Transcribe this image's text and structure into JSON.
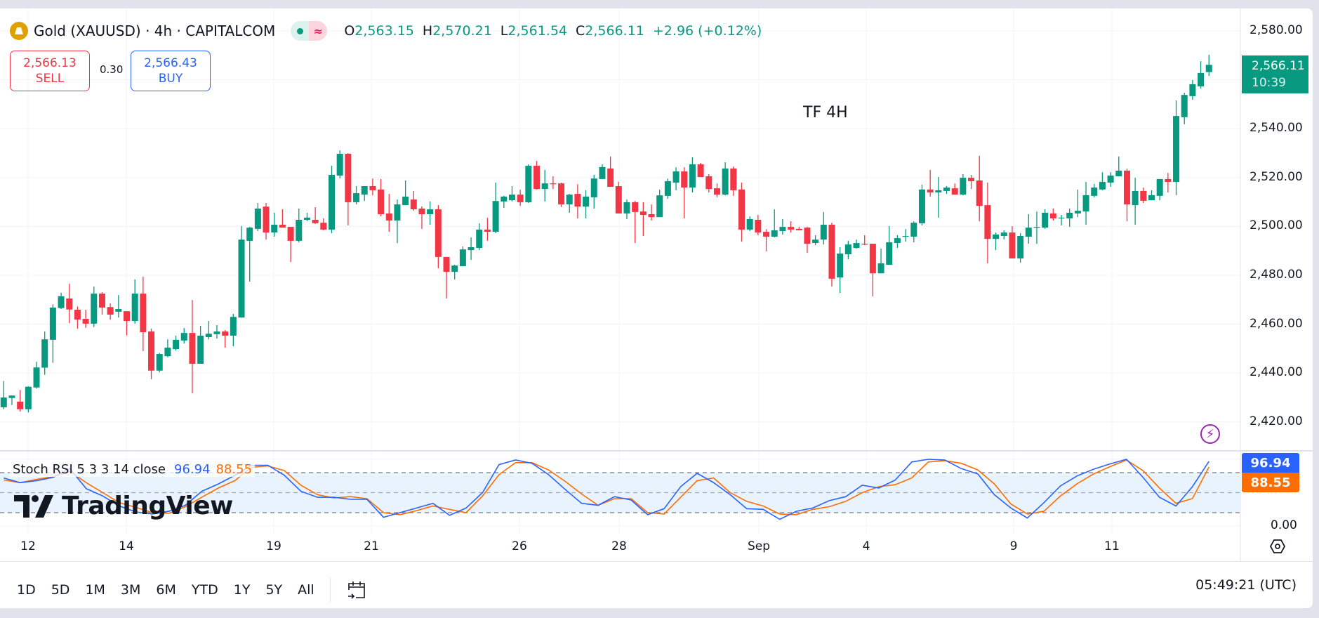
{
  "header": {
    "title": "Gold (XAUUSD) · 4h · CAPITALCOM",
    "open_label": "O",
    "open": "2,563.15",
    "high_label": "H",
    "high": "2,570.21",
    "low_label": "L",
    "low": "2,561.54",
    "close_label": "C",
    "close": "2,566.11",
    "change": "+2.96 (+0.12%)",
    "status_icon": "≈"
  },
  "trade": {
    "sell_price": "2,566.13",
    "sell_label": "SELL",
    "spread": "0.30",
    "buy_price": "2,566.43",
    "buy_label": "BUY"
  },
  "annotation": "TF 4H",
  "price_axis": [
    "2,580.00",
    "2,540.00",
    "2,520.00",
    "2,500.00",
    "2,480.00",
    "2,460.00",
    "2,440.00",
    "2,420.00"
  ],
  "last_price": {
    "value": "2,566.11",
    "countdown": "10:39"
  },
  "stoch": {
    "legend": "Stoch RSI 5 3 3 14 close",
    "k_value": "96.94",
    "d_value": "88.55",
    "zero_label": "0.00"
  },
  "time_axis": [
    "12",
    "14",
    "19",
    "21",
    "26",
    "28",
    "Sep",
    "4",
    "9",
    "11"
  ],
  "toolbar": {
    "ranges": [
      "1D",
      "5D",
      "1M",
      "3M",
      "6M",
      "YTD",
      "1Y",
      "5Y",
      "All"
    ],
    "clock": "05:49:21 (UTC)"
  },
  "watermark": "TradingView",
  "colors": {
    "up": "#089981",
    "down": "#f23645",
    "k": "#2962ff",
    "d": "#ff6d00",
    "sell": "#f23645",
    "buy": "#2962ff"
  },
  "chart_data": {
    "type": "candlestick",
    "timeframe": "4h",
    "ylim": [
      2420,
      2580
    ],
    "x_ticks": [
      "12",
      "14",
      "19",
      "21",
      "26",
      "28",
      "Sep",
      "4",
      "9",
      "11"
    ],
    "candles_ohlc": [
      [
        2426.0,
        2436.7,
        2425.2,
        2430.0
      ],
      [
        2429.8,
        2430.8,
        2426.9,
        2430.8
      ],
      [
        2428.3,
        2433.1,
        2424.2,
        2425.2
      ],
      [
        2425.2,
        2434.6,
        2423.9,
        2434.4
      ],
      [
        2434.1,
        2444.6,
        2433.6,
        2442.3
      ],
      [
        2442.2,
        2457.0,
        2439.3,
        2453.8
      ],
      [
        2453.6,
        2468.1,
        2444.2,
        2466.8
      ],
      [
        2466.6,
        2472.9,
        2466.2,
        2471.4
      ],
      [
        2470.5,
        2476.5,
        2460.4,
        2466.0
      ],
      [
        2465.9,
        2467.2,
        2458.2,
        2461.9
      ],
      [
        2462.2,
        2465.9,
        2458.5,
        2460.2
      ],
      [
        2460.2,
        2475.4,
        2458.8,
        2472.5
      ],
      [
        2472.5,
        2473.1,
        2463.9,
        2466.8
      ],
      [
        2467.0,
        2468.5,
        2461.9,
        2463.9
      ],
      [
        2465.1,
        2471.9,
        2462.7,
        2466.2
      ],
      [
        2465.3,
        2465.3,
        2455.4,
        2461.3
      ],
      [
        2461.3,
        2478.3,
        2460.2,
        2472.5
      ],
      [
        2472.5,
        2479.4,
        2449.0,
        2456.7
      ],
      [
        2457.0,
        2458.2,
        2437.5,
        2441.0
      ],
      [
        2441.0,
        2448.2,
        2440.3,
        2447.8
      ],
      [
        2446.9,
        2453.8,
        2446.4,
        2450.4
      ],
      [
        2449.8,
        2455.3,
        2449.2,
        2453.6
      ],
      [
        2453.3,
        2458.4,
        2452.1,
        2456.4
      ],
      [
        2456.4,
        2469.9,
        2431.7,
        2443.8
      ],
      [
        2443.8,
        2459.3,
        2443.8,
        2455.3
      ],
      [
        2454.7,
        2461.3,
        2453.8,
        2456.1
      ],
      [
        2455.9,
        2459.6,
        2454.1,
        2457.0
      ],
      [
        2457.0,
        2457.6,
        2450.4,
        2455.3
      ],
      [
        2455.3,
        2464.2,
        2451.0,
        2463.0
      ],
      [
        2462.7,
        2500.1,
        2462.7,
        2494.6
      ],
      [
        2494.1,
        2499.8,
        2477.4,
        2499.5
      ],
      [
        2499.0,
        2509.6,
        2498.1,
        2507.3
      ],
      [
        2508.1,
        2509.6,
        2494.6,
        2497.5
      ],
      [
        2497.5,
        2505.6,
        2495.8,
        2500.7
      ],
      [
        2500.7,
        2507.0,
        2499.5,
        2499.5
      ],
      [
        2499.8,
        2499.8,
        2485.4,
        2494.1
      ],
      [
        2494.1,
        2507.3,
        2493.5,
        2502.7
      ],
      [
        2502.7,
        2505.6,
        2502.1,
        2503.6
      ],
      [
        2502.7,
        2507.9,
        2501.0,
        2501.3
      ],
      [
        2501.5,
        2503.3,
        2498.4,
        2498.7
      ],
      [
        2498.7,
        2524.8,
        2497.2,
        2521.1
      ],
      [
        2520.8,
        2531.1,
        2519.6,
        2529.7
      ],
      [
        2529.7,
        2530.0,
        2500.4,
        2509.9
      ],
      [
        2509.9,
        2516.5,
        2509.0,
        2513.6
      ],
      [
        2513.0,
        2516.5,
        2510.4,
        2516.5
      ],
      [
        2516.5,
        2519.6,
        2512.7,
        2514.8
      ],
      [
        2515.1,
        2519.4,
        2504.1,
        2505.0
      ],
      [
        2505.3,
        2513.3,
        2497.8,
        2502.4
      ],
      [
        2502.4,
        2511.0,
        2493.2,
        2509.0
      ],
      [
        2508.7,
        2518.8,
        2508.7,
        2512.2
      ],
      [
        2511.0,
        2514.5,
        2506.4,
        2507.0
      ],
      [
        2507.3,
        2508.2,
        2499.0,
        2505.0
      ],
      [
        2505.0,
        2510.2,
        2500.7,
        2507.0
      ],
      [
        2507.0,
        2508.7,
        2482.9,
        2487.5
      ],
      [
        2487.5,
        2487.5,
        2470.5,
        2481.4
      ],
      [
        2481.4,
        2484.3,
        2478.3,
        2484.0
      ],
      [
        2483.7,
        2491.8,
        2483.7,
        2490.6
      ],
      [
        2490.3,
        2495.5,
        2486.3,
        2491.5
      ],
      [
        2491.2,
        2501.3,
        2490.3,
        2498.7
      ],
      [
        2498.7,
        2503.5,
        2494.1,
        2497.8
      ],
      [
        2497.8,
        2517.9,
        2497.2,
        2510.4
      ],
      [
        2510.2,
        2512.5,
        2507.6,
        2512.2
      ],
      [
        2510.7,
        2516.5,
        2510.2,
        2513.0
      ],
      [
        2513.0,
        2515.0,
        2508.4,
        2509.9
      ],
      [
        2509.9,
        2525.4,
        2509.6,
        2524.8
      ],
      [
        2524.8,
        2526.8,
        2515.0,
        2515.3
      ],
      [
        2515.3,
        2523.1,
        2510.2,
        2517.6
      ],
      [
        2517.6,
        2520.5,
        2515.3,
        2517.3
      ],
      [
        2517.6,
        2517.9,
        2507.9,
        2509.0
      ],
      [
        2509.0,
        2513.3,
        2505.6,
        2513.0
      ],
      [
        2513.3,
        2517.3,
        2503.3,
        2508.1
      ],
      [
        2508.1,
        2514.8,
        2503.3,
        2512.2
      ],
      [
        2511.9,
        2521.1,
        2507.3,
        2519.6
      ],
      [
        2519.4,
        2525.4,
        2519.4,
        2524.3
      ],
      [
        2523.7,
        2528.6,
        2516.2,
        2516.2
      ],
      [
        2516.5,
        2518.2,
        2505.3,
        2505.3
      ],
      [
        2505.3,
        2511.0,
        2503.0,
        2509.9
      ],
      [
        2509.9,
        2510.4,
        2493.2,
        2505.9
      ],
      [
        2506.1,
        2509.9,
        2496.1,
        2504.7
      ],
      [
        2505.0,
        2509.0,
        2502.4,
        2503.8
      ],
      [
        2503.8,
        2515.0,
        2503.8,
        2512.7
      ],
      [
        2512.5,
        2519.6,
        2511.3,
        2518.5
      ],
      [
        2517.9,
        2524.2,
        2514.8,
        2522.5
      ],
      [
        2522.5,
        2524.2,
        2503.3,
        2515.9
      ],
      [
        2515.9,
        2528.3,
        2513.9,
        2525.4
      ],
      [
        2525.4,
        2526.0,
        2520.2,
        2520.2
      ],
      [
        2520.5,
        2521.4,
        2513.9,
        2515.3
      ],
      [
        2515.6,
        2517.6,
        2511.9,
        2513.0
      ],
      [
        2513.0,
        2526.3,
        2512.7,
        2523.7
      ],
      [
        2523.7,
        2524.5,
        2512.5,
        2514.8
      ],
      [
        2515.1,
        2517.9,
        2493.8,
        2498.7
      ],
      [
        2498.7,
        2504.1,
        2498.1,
        2503.0
      ],
      [
        2502.7,
        2504.7,
        2496.4,
        2497.5
      ],
      [
        2497.8,
        2498.9,
        2489.8,
        2495.8
      ],
      [
        2495.8,
        2507.0,
        2495.5,
        2498.4
      ],
      [
        2498.1,
        2503.0,
        2496.6,
        2499.8
      ],
      [
        2499.8,
        2502.1,
        2497.5,
        2498.7
      ],
      [
        2499.0,
        2499.8,
        2498.4,
        2498.4
      ],
      [
        2499.5,
        2499.8,
        2489.2,
        2492.9
      ],
      [
        2493.2,
        2496.4,
        2492.3,
        2494.6
      ],
      [
        2494.6,
        2505.9,
        2492.6,
        2500.7
      ],
      [
        2500.7,
        2501.5,
        2475.4,
        2478.6
      ],
      [
        2479.1,
        2491.5,
        2472.8,
        2488.9
      ],
      [
        2488.6,
        2494.1,
        2486.6,
        2492.6
      ],
      [
        2491.2,
        2494.6,
        2490.9,
        2493.2
      ],
      [
        2492.9,
        2496.4,
        2492.3,
        2492.6
      ],
      [
        2492.9,
        2492.9,
        2471.4,
        2480.8
      ],
      [
        2480.8,
        2490.9,
        2480.8,
        2484.9
      ],
      [
        2484.3,
        2500.1,
        2484.3,
        2493.5
      ],
      [
        2493.2,
        2496.4,
        2491.2,
        2495.2
      ],
      [
        2495.8,
        2498.9,
        2493.8,
        2496.1
      ],
      [
        2495.8,
        2502.1,
        2493.5,
        2501.5
      ],
      [
        2501.3,
        2517.1,
        2500.4,
        2515.1
      ],
      [
        2515.1,
        2523.1,
        2512.2,
        2513.9
      ],
      [
        2513.9,
        2520.2,
        2503.6,
        2514.8
      ],
      [
        2514.5,
        2516.5,
        2513.3,
        2515.9
      ],
      [
        2515.6,
        2517.6,
        2513.0,
        2513.0
      ],
      [
        2513.0,
        2521.4,
        2512.7,
        2519.9
      ],
      [
        2519.9,
        2521.1,
        2515.3,
        2518.5
      ],
      [
        2518.8,
        2528.9,
        2502.1,
        2508.4
      ],
      [
        2508.7,
        2517.9,
        2484.9,
        2494.9
      ],
      [
        2494.9,
        2497.5,
        2490.3,
        2496.7
      ],
      [
        2496.1,
        2498.4,
        2494.7,
        2497.5
      ],
      [
        2497.5,
        2500.1,
        2486.9,
        2486.9
      ],
      [
        2486.9,
        2497.2,
        2485.2,
        2496.1
      ],
      [
        2495.8,
        2505.0,
        2492.9,
        2499.5
      ],
      [
        2499.5,
        2506.1,
        2492.9,
        2499.8
      ],
      [
        2499.5,
        2507.0,
        2499.0,
        2505.6
      ],
      [
        2505.3,
        2507.3,
        2502.4,
        2503.3
      ],
      [
        2503.3,
        2504.7,
        2500.4,
        2503.6
      ],
      [
        2503.3,
        2507.3,
        2499.8,
        2505.6
      ],
      [
        2505.3,
        2515.1,
        2503.8,
        2506.4
      ],
      [
        2506.1,
        2518.2,
        2500.7,
        2512.8
      ],
      [
        2512.5,
        2517.4,
        2511.9,
        2515.9
      ],
      [
        2515.1,
        2522.2,
        2514.8,
        2518.2
      ],
      [
        2517.9,
        2522.2,
        2516.2,
        2520.8
      ],
      [
        2520.5,
        2528.6,
        2520.5,
        2522.8
      ],
      [
        2522.8,
        2523.7,
        2502.1,
        2509.0
      ],
      [
        2508.7,
        2519.9,
        2500.7,
        2514.5
      ],
      [
        2514.5,
        2515.9,
        2509.6,
        2510.5
      ],
      [
        2510.7,
        2514.8,
        2510.7,
        2512.8
      ],
      [
        2512.5,
        2519.4,
        2510.7,
        2519.4
      ],
      [
        2519.4,
        2521.9,
        2513.9,
        2518.2
      ],
      [
        2518.2,
        2551.5,
        2512.8,
        2545.2
      ],
      [
        2544.7,
        2554.7,
        2541.8,
        2553.8
      ],
      [
        2553.3,
        2559.9,
        2551.8,
        2558.2
      ],
      [
        2557.3,
        2567.6,
        2556.4,
        2562.8
      ],
      [
        2563.15,
        2570.21,
        2561.54,
        2566.11
      ]
    ],
    "stoch_rsi": {
      "ylim": [
        0,
        100
      ],
      "bands": [
        20,
        50,
        80
      ],
      "k": [
        72,
        65,
        68,
        73,
        86,
        56,
        45,
        30,
        21,
        18,
        22,
        31,
        52,
        63,
        76,
        91,
        91,
        76,
        52,
        43,
        43,
        40,
        40,
        13,
        20,
        27,
        34,
        16,
        27,
        50,
        92,
        99,
        94,
        77,
        55,
        34,
        31,
        44,
        39,
        17,
        26,
        59,
        79,
        65,
        47,
        26,
        25,
        10,
        22,
        27,
        38,
        44,
        61,
        57,
        69,
        96,
        100,
        99,
        86,
        78,
        47,
        27,
        12,
        35,
        60,
        75,
        85,
        93,
        100,
        73,
        43,
        30,
        59,
        96.94
      ],
      "d": [
        69,
        65,
        70,
        74,
        82,
        65,
        50,
        35,
        28,
        20,
        19,
        29,
        43,
        57,
        68,
        88,
        90,
        83,
        61,
        47,
        42,
        44,
        41,
        20,
        17,
        23,
        30,
        25,
        20,
        45,
        77,
        95,
        95,
        84,
        67,
        48,
        31,
        41,
        41,
        20,
        18,
        43,
        68,
        72,
        50,
        37,
        30,
        18,
        17,
        25,
        29,
        37,
        50,
        59,
        62,
        72,
        96,
        98,
        94,
        84,
        63,
        33,
        18,
        22,
        45,
        63,
        78,
        89,
        99,
        83,
        57,
        34,
        41,
        88.55
      ]
    }
  }
}
